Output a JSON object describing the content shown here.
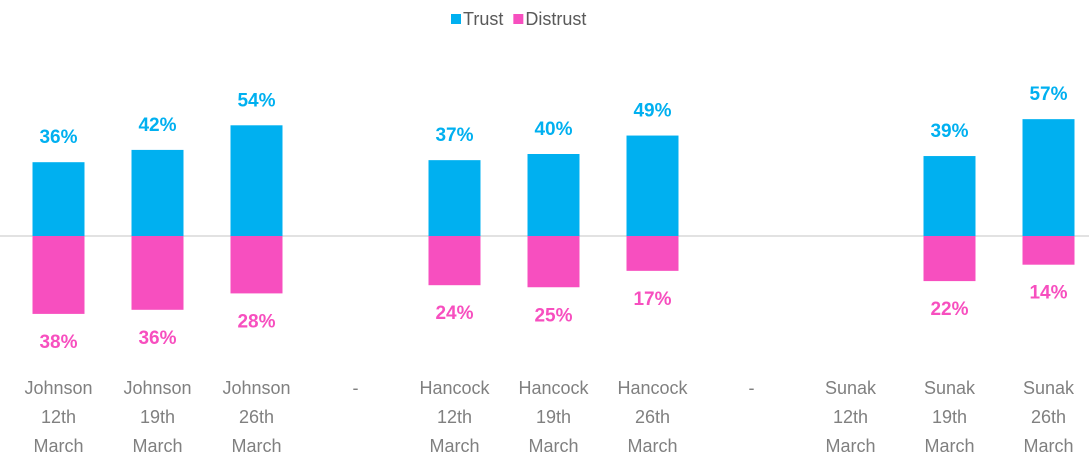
{
  "chart_data": {
    "type": "bar",
    "categories": [
      "Johnson 12th March",
      "Johnson 19th March",
      "Johnson 26th March",
      "-",
      "Hancock 12th March",
      "Hancock 19th March",
      "Hancock 26th March",
      "-",
      "Sunak 12th March",
      "Sunak 19th March",
      "Sunak 26th March"
    ],
    "series": [
      {
        "name": "Trust",
        "color": "#00b0f0",
        "values": [
          36,
          42,
          54,
          null,
          37,
          40,
          49,
          null,
          null,
          39,
          57
        ],
        "value_labels": [
          "36%",
          "42%",
          "54%",
          null,
          "37%",
          "40%",
          "49%",
          null,
          null,
          "39%",
          "57%"
        ]
      },
      {
        "name": "Distrust",
        "color": "#f74fbf",
        "values": [
          -38,
          -36,
          -28,
          null,
          -24,
          -25,
          -17,
          null,
          null,
          -22,
          -14
        ],
        "value_labels": [
          "38%",
          "36%",
          "28%",
          null,
          "24%",
          "25%",
          "17%",
          null,
          null,
          "22%",
          "14%"
        ]
      }
    ],
    "ylim": [
      -50,
      60
    ],
    "legend": "top"
  }
}
